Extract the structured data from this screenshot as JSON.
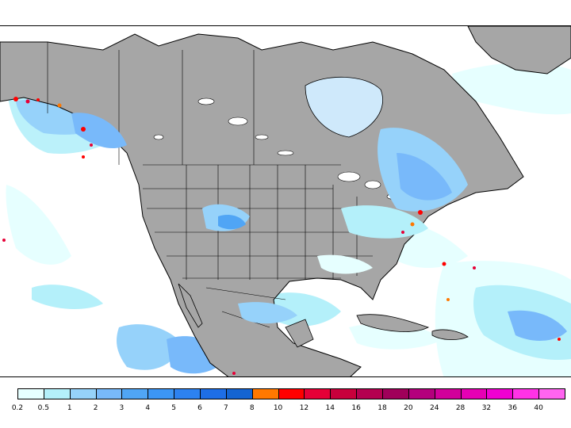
{
  "map": {
    "colors": {
      "ocean": "#ffffff",
      "land": "#a6a6a6",
      "border": "#000000"
    }
  },
  "legend": {
    "ticks": [
      "0.2",
      "0.5",
      "1",
      "2",
      "3",
      "4",
      "5",
      "6",
      "7",
      "8",
      "10",
      "12",
      "14",
      "16",
      "18",
      "20",
      "24",
      "28",
      "32",
      "36",
      "40"
    ],
    "colors": [
      "#e6ffff",
      "#b4f0fa",
      "#96d2fa",
      "#78b9fa",
      "#50a5f5",
      "#3c96f5",
      "#2d82f0",
      "#1e6ee6",
      "#1464d2",
      "#ff7800",
      "#ff0000",
      "#e60037",
      "#c8003c",
      "#b40050",
      "#a0005a",
      "#b4007d",
      "#d2009b",
      "#e600b4",
      "#f000d2",
      "#ff32e6",
      "#ff64f0"
    ]
  }
}
